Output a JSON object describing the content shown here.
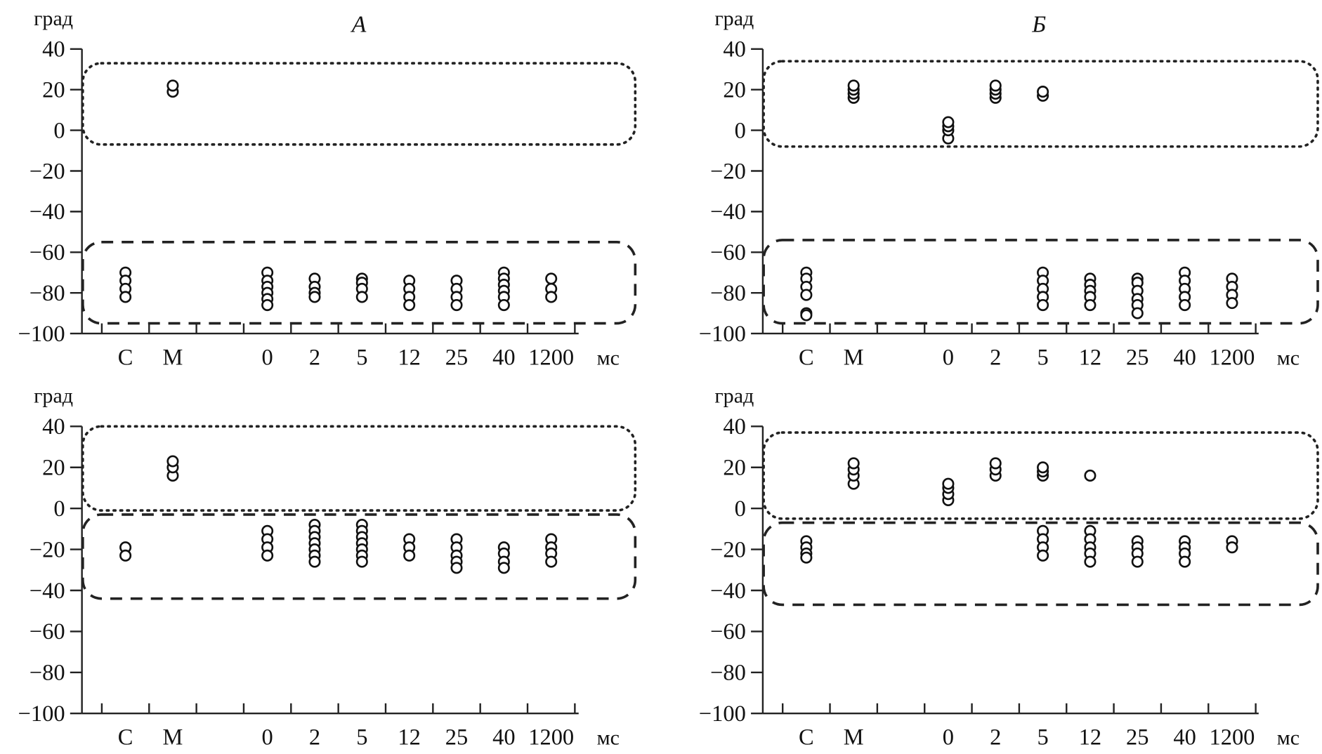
{
  "chart_data": [
    {
      "type": "scatter",
      "title": "А",
      "ylabel": "град",
      "xunit": "мс",
      "ylim": [
        -100,
        40
      ],
      "yticks": [
        40,
        20,
        0,
        -20,
        -40,
        -60,
        -80,
        -100
      ],
      "ytick_labels": [
        "40",
        "20",
        "0",
        "−20",
        "−40",
        "−60",
        "−80",
        "−100"
      ],
      "categories": [
        "С",
        "М",
        "0",
        "2",
        "5",
        "12",
        "25",
        "40",
        "1200"
      ],
      "points": {
        "С": [
          -70,
          -74,
          -78,
          -82
        ],
        "М": [
          19,
          22
        ],
        "0": [
          -70,
          -74,
          -77,
          -80,
          -83,
          -86
        ],
        "2": [
          -73,
          -77,
          -80,
          -82
        ],
        "5": [
          -73,
          -75,
          -78,
          -82
        ],
        "12": [
          -74,
          -78,
          -82,
          -86
        ],
        "25": [
          -74,
          -78,
          -82,
          -86
        ],
        "40": [
          -70,
          -73,
          -76,
          -79,
          -82,
          -86
        ],
        "1200": [
          -73,
          -78,
          -82
        ]
      },
      "regions": [
        {
          "style": "dotted",
          "ymax": 33,
          "ymin": -7
        },
        {
          "style": "dashed",
          "ymax": -55,
          "ymin": -95
        }
      ]
    },
    {
      "type": "scatter",
      "title": "Б",
      "ylabel": "град",
      "xunit": "мс",
      "ylim": [
        -100,
        40
      ],
      "yticks": [
        40,
        20,
        0,
        -20,
        -40,
        -60,
        -80,
        -100
      ],
      "ytick_labels": [
        "40",
        "20",
        "0",
        "−20",
        "−40",
        "−60",
        "−80",
        "−100"
      ],
      "categories": [
        "С",
        "М",
        "0",
        "2",
        "5",
        "12",
        "25",
        "40",
        "1200"
      ],
      "points": {
        "С": [
          -70,
          -73,
          -77,
          -81,
          -90,
          -91
        ],
        "М": [
          16,
          18,
          20,
          22
        ],
        "0": [
          -4,
          0,
          2,
          4
        ],
        "2": [
          16,
          18,
          20,
          22
        ],
        "5": [
          17,
          19,
          -70,
          -74,
          -78,
          -82,
          -86
        ],
        "12": [
          -73,
          -76,
          -79,
          -82,
          -86
        ],
        "25": [
          -73,
          -75,
          -79,
          -83,
          -86,
          -90
        ],
        "40": [
          -70,
          -74,
          -78,
          -82,
          -86
        ],
        "1200": [
          -73,
          -77,
          -81,
          -85
        ]
      },
      "regions": [
        {
          "style": "dotted",
          "ymax": 34,
          "ymin": -8
        },
        {
          "style": "dashed",
          "ymax": -54,
          "ymin": -95
        }
      ]
    },
    {
      "type": "scatter",
      "title": "",
      "ylabel": "град",
      "xunit": "мс",
      "ylim": [
        -100,
        40
      ],
      "yticks": [
        40,
        20,
        0,
        -20,
        -40,
        -60,
        -80,
        -100
      ],
      "ytick_labels": [
        "40",
        "20",
        "0",
        "−20",
        "−40",
        "−60",
        "−80",
        "−100"
      ],
      "categories": [
        "С",
        "М",
        "0",
        "2",
        "5",
        "12",
        "25",
        "40",
        "1200"
      ],
      "points": {
        "С": [
          -19,
          -23
        ],
        "М": [
          16,
          20,
          23
        ],
        "0": [
          -11,
          -15,
          -19,
          -23
        ],
        "2": [
          -8,
          -11,
          -14,
          -17,
          -20,
          -23,
          -26
        ],
        "5": [
          -8,
          -11,
          -14,
          -17,
          -20,
          -23,
          -26
        ],
        "12": [
          -15,
          -19,
          -23
        ],
        "25": [
          -15,
          -19,
          -23,
          -26,
          -29
        ],
        "40": [
          -19,
          -22,
          -26,
          -29
        ],
        "1200": [
          -15,
          -19,
          -22,
          -26
        ]
      },
      "regions": [
        {
          "style": "dotted",
          "ymax": 40,
          "ymin": -1
        },
        {
          "style": "dashed",
          "ymax": -3,
          "ymin": -44
        }
      ]
    },
    {
      "type": "scatter",
      "title": "",
      "ylabel": "град",
      "xunit": "мс",
      "ylim": [
        -100,
        40
      ],
      "yticks": [
        40,
        20,
        0,
        -20,
        -40,
        -60,
        -80,
        -100
      ],
      "ytick_labels": [
        "40",
        "20",
        "0",
        "−20",
        "−40",
        "−60",
        "−80",
        "−100"
      ],
      "categories": [
        "С",
        "М",
        "0",
        "2",
        "5",
        "12",
        "25",
        "40",
        "1200"
      ],
      "points": {
        "С": [
          -16,
          -19,
          -22,
          -24
        ],
        "М": [
          12,
          16,
          19,
          22
        ],
        "0": [
          4,
          7,
          10,
          12
        ],
        "2": [
          16,
          19,
          22
        ],
        "5": [
          16,
          18,
          20,
          -11,
          -15,
          -19,
          -23
        ],
        "12": [
          16,
          -11,
          -15,
          -19,
          -22,
          -26
        ],
        "25": [
          -16,
          -19,
          -22,
          -26
        ],
        "40": [
          -16,
          -19,
          -22,
          -26
        ],
        "1200": [
          -16,
          -19
        ]
      },
      "regions": [
        {
          "style": "dotted",
          "ymax": 37,
          "ymin": -5
        },
        {
          "style": "dashed",
          "ymax": -7,
          "ymin": -47
        }
      ]
    }
  ]
}
